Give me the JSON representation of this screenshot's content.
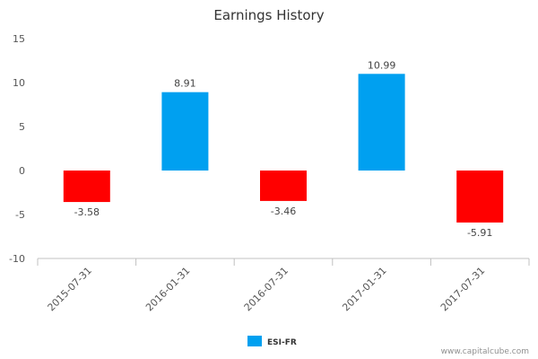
{
  "chart_data": {
    "type": "bar",
    "title": "Earnings History",
    "categories": [
      "2015-07-31",
      "2016-01-31",
      "2016-07-31",
      "2017-01-31",
      "2017-07-31"
    ],
    "series": [
      {
        "name": "ESI-FR",
        "values": [
          -3.58,
          8.91,
          -3.46,
          10.99,
          -5.91
        ]
      }
    ],
    "data_labels": [
      "-3.58",
      "8.91",
      "-3.46",
      "10.99",
      "-5.91"
    ],
    "yticks": [
      15,
      10,
      5,
      0,
      -5,
      -10
    ],
    "ylim": [
      -10,
      15
    ],
    "xlabel": "",
    "ylabel": "",
    "grid": false,
    "legend": "bottom-center",
    "colors": {
      "positive": "#00a0f0",
      "negative": "#ff0000",
      "axis": "#c0c0c0"
    }
  },
  "credit": "www.capitalcube.com"
}
